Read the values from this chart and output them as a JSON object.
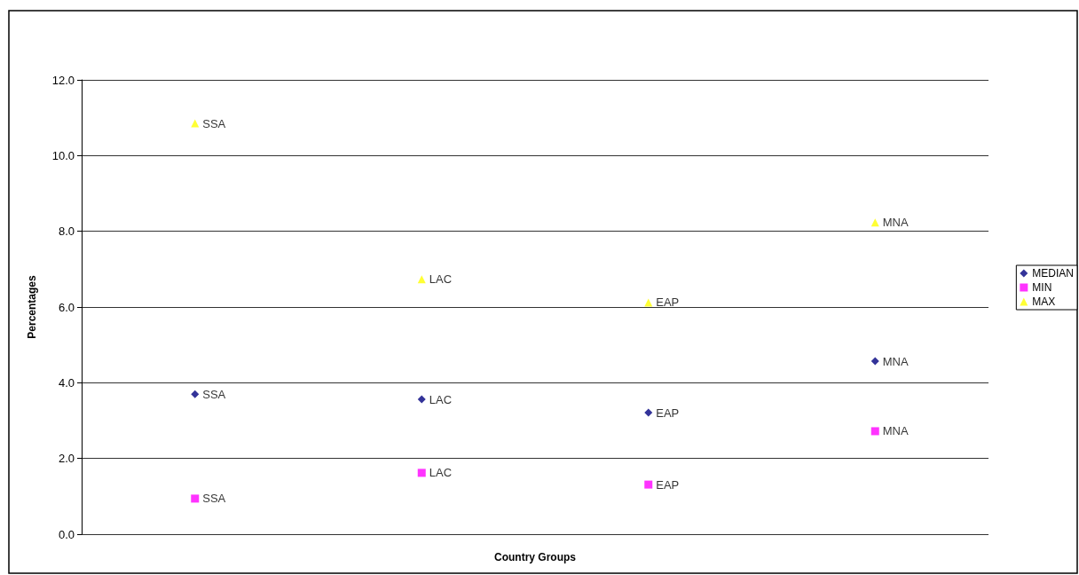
{
  "chart_data": {
    "type": "scatter",
    "xlabel": "Country Groups",
    "ylabel": "Percentages",
    "categories": [
      null,
      null,
      null,
      null
    ],
    "series": [
      {
        "name": "MEDIAN",
        "color": "#000080",
        "marker": "diamond",
        "values": [
          3.7,
          3.56,
          3.21,
          4.57
        ],
        "value_labels": [
          "SSA",
          "LAC",
          "EAP",
          "MNA"
        ]
      },
      {
        "name": "MIN",
        "color": "#ff00ff",
        "marker": "square",
        "values": [
          0.94,
          1.62,
          1.31,
          2.72
        ],
        "value_labels": [
          "SSA",
          "LAC",
          "EAP",
          "MNA"
        ]
      },
      {
        "name": "MAX",
        "color": "#ffff00",
        "marker": "triangle",
        "values": [
          10.85,
          6.73,
          6.12,
          8.23
        ],
        "value_labels": [
          "SSA",
          "LAC",
          "EAP",
          "MNA"
        ]
      }
    ],
    "ylim": [
      0,
      12
    ],
    "yticks": [
      {
        "value": 0,
        "label": "0.0"
      },
      {
        "value": 2,
        "label": "2.0"
      },
      {
        "value": 4,
        "label": "4.0"
      },
      {
        "value": 6,
        "label": "6.0"
      },
      {
        "value": 8,
        "label": "8.0"
      },
      {
        "value": 10,
        "label": "10.0"
      },
      {
        "value": 12,
        "label": "12.0"
      }
    ],
    "grid": "y",
    "legend": "right"
  }
}
